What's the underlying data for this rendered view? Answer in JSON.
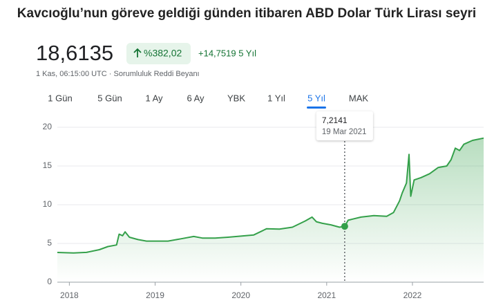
{
  "header": {
    "title": "Kavcıoğlu’nun göreve geldiği günden itibaren ABD Dolar Türk Lirası seyri",
    "price": "18,6135",
    "change_percent": "%382,02",
    "change": "+14,7519 5 Yıl",
    "timestamp": "1 Kas, 06:15:00 UTC · Sorumluluk Reddi Beyanı",
    "tabs": [
      "1 Gün",
      "5 Gün",
      "1 Ay",
      "6 Ay",
      "YBK",
      "1 Yıl",
      "5 Yıl",
      "MAK"
    ],
    "selected_tab": 6
  },
  "chart_data": {
    "type": "line",
    "color": "#34a04a",
    "grid": true,
    "x": [
      2017.86,
      2017.95,
      2018.05,
      2018.2,
      2018.35,
      2018.45,
      2018.55,
      2018.58,
      2018.62,
      2018.65,
      2018.7,
      2018.8,
      2018.9,
      2019.0,
      2019.15,
      2019.3,
      2019.45,
      2019.55,
      2019.7,
      2019.85,
      2020.0,
      2020.15,
      2020.3,
      2020.45,
      2020.6,
      2020.75,
      2020.83,
      2020.88,
      2020.95,
      2021.05,
      2021.15,
      2021.21,
      2021.25,
      2021.4,
      2021.55,
      2021.7,
      2021.78,
      2021.85,
      2021.88,
      2021.93,
      2021.96,
      2021.98,
      2022.02,
      2022.1,
      2022.2,
      2022.3,
      2022.4,
      2022.45,
      2022.5,
      2022.55,
      2022.6,
      2022.7,
      2022.83
    ],
    "values": [
      3.84,
      3.8,
      3.78,
      3.85,
      4.2,
      4.6,
      4.8,
      6.2,
      6.0,
      6.5,
      5.8,
      5.5,
      5.3,
      5.3,
      5.3,
      5.6,
      5.9,
      5.7,
      5.7,
      5.8,
      5.95,
      6.1,
      6.9,
      6.85,
      7.1,
      7.9,
      8.4,
      7.8,
      7.6,
      7.4,
      7.1,
      7.2141,
      8.0,
      8.4,
      8.6,
      8.5,
      9.0,
      10.5,
      11.5,
      12.8,
      16.5,
      11.1,
      13.2,
      13.5,
      14.0,
      14.8,
      15.0,
      15.8,
      17.3,
      17.0,
      17.8,
      18.3,
      18.6
    ],
    "xlim": [
      2017.86,
      2022.83
    ],
    "xticks": [
      2018,
      2019,
      2020,
      2021,
      2022
    ],
    "ylim": [
      0,
      20
    ],
    "yticks": [
      0,
      5,
      10,
      15,
      20
    ],
    "highlight": {
      "x": 2021.21,
      "value": 7.2141,
      "label": "7,2141",
      "date": "19 Mar 2021"
    }
  }
}
